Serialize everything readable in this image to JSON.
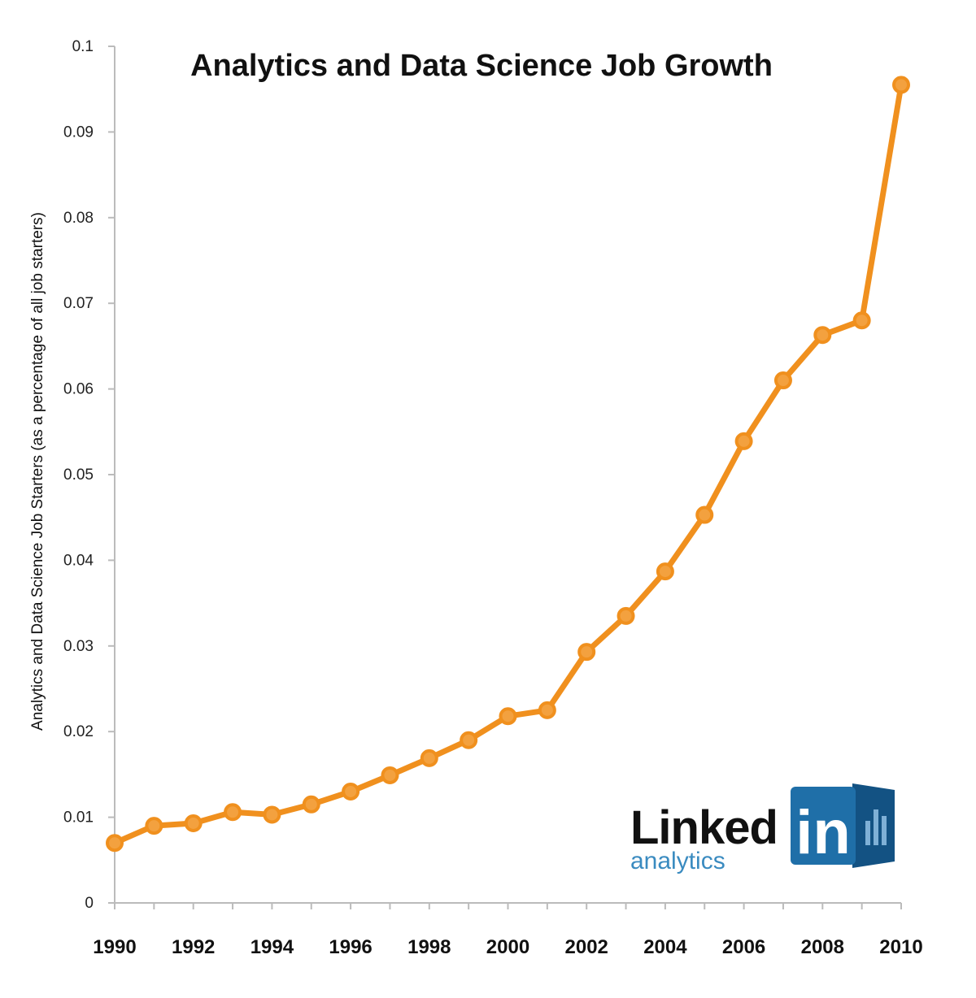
{
  "colors": {
    "line": "#F0901E",
    "marker_fill": "#F3A13F",
    "axis": "#BBBBBB",
    "logo_blue": "#1F6FA8",
    "logo_blue_dark": "#135283",
    "logo_text_blue": "#3A8BC0"
  },
  "logo": {
    "word": "Linked",
    "badge": "in",
    "sub": "analytics",
    "badge_icon": "bar-chart-icon"
  },
  "chart_data": {
    "type": "line",
    "title": "Analytics and Data Science Job Growth",
    "xlabel": "",
    "ylabel": "Analytics and Data Science Job Starters (as a percentage of all job starters)",
    "xlim": [
      1990,
      2010
    ],
    "ylim": [
      0,
      0.1
    ],
    "grid": false,
    "legend": "none",
    "x_ticks": [
      "1990",
      "1992",
      "1994",
      "1996",
      "1998",
      "2000",
      "2002",
      "2004",
      "2006",
      "2008",
      "2010"
    ],
    "y_ticks": [
      "0",
      "0.01",
      "0.02",
      "0.03",
      "0.04",
      "0.05",
      "0.06",
      "0.07",
      "0.08",
      "0.09",
      "0.1"
    ],
    "x": [
      1990,
      1991,
      1992,
      1993,
      1994,
      1995,
      1996,
      1997,
      1998,
      1999,
      2000,
      2001,
      2002,
      2003,
      2004,
      2005,
      2006,
      2007,
      2008,
      2009,
      2010
    ],
    "series": [
      {
        "values": [
          0.007,
          0.009,
          0.0093,
          0.0106,
          0.0103,
          0.0115,
          0.013,
          0.0149,
          0.0169,
          0.019,
          0.0218,
          0.0225,
          0.0293,
          0.0335,
          0.0387,
          0.0453,
          0.0539,
          0.061,
          0.0663,
          0.068,
          0.0955
        ]
      }
    ]
  }
}
